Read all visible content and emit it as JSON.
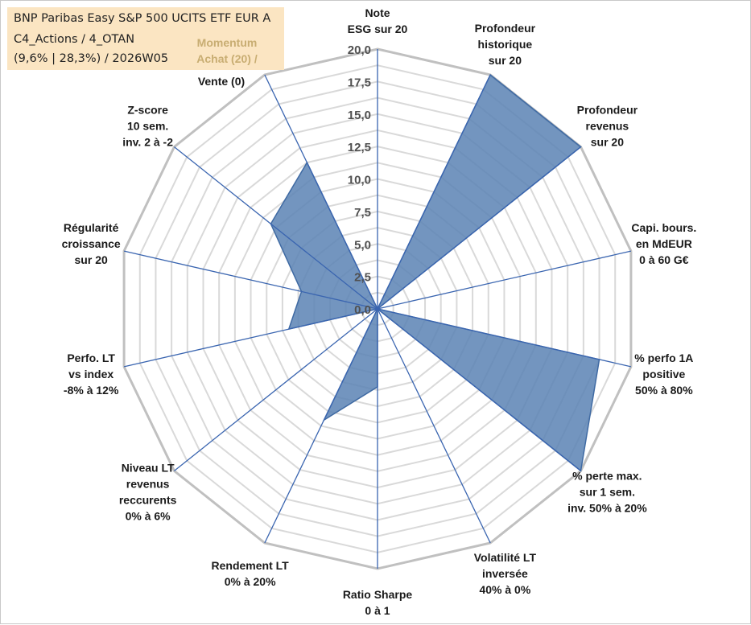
{
  "info": {
    "line1": "BNP Paribas Easy S&P 500 UCITS ETF EUR A",
    "line2": "C4_Actions / 4_OTAN",
    "line3": "(9,6% | 28,3%) / 2026W05",
    "momentum": "Momentum\nAchat (20) /"
  },
  "colors": {
    "fill": "#5b82b4",
    "stroke": "#3f6aa3",
    "spoke": "#3a65b0",
    "ring": "#d9d9d9",
    "outer_ring": "#c0c0c0",
    "info_bg": "#fbe5c2"
  },
  "chart_data": {
    "type": "radar",
    "title": "",
    "rlim": [
      0,
      20
    ],
    "tick_labels": [
      "0,0",
      "2,5",
      "5,0",
      "7,5",
      "10,0",
      "12,5",
      "15,0",
      "17,5",
      "20,0"
    ],
    "grid": true,
    "categories": [
      "Note\nESG sur 20",
      "Profondeur\nhistorique\nsur 20",
      "Profondeur\nrevenus\nsur 20",
      "Capi. bours.\nen MdEUR\n0 à 60 G€",
      "% perfo 1A\npositive\n50% à 80%",
      "% perte max.\nsur 1 sem.\ninv. 50% à 20%",
      "Volatilité LT\ninversée\n40% à 0%",
      "Ratio Sharpe\n0 à 1",
      "Rendement LT\n0% à 20%",
      "Niveau LT\nrevenus\nreccurents\n0% à 6%",
      "Perfo. LT\nvs index\n-8% à 12%",
      "Régularité\ncroissance\nsur 20",
      "Z-score\n10 sem.\ninv. 2 à -2",
      "Vente (0)"
    ],
    "values": [
      0,
      20,
      20,
      0,
      17.5,
      20,
      0,
      6,
      9.5,
      0,
      7,
      6,
      10.5,
      12.5
    ]
  }
}
